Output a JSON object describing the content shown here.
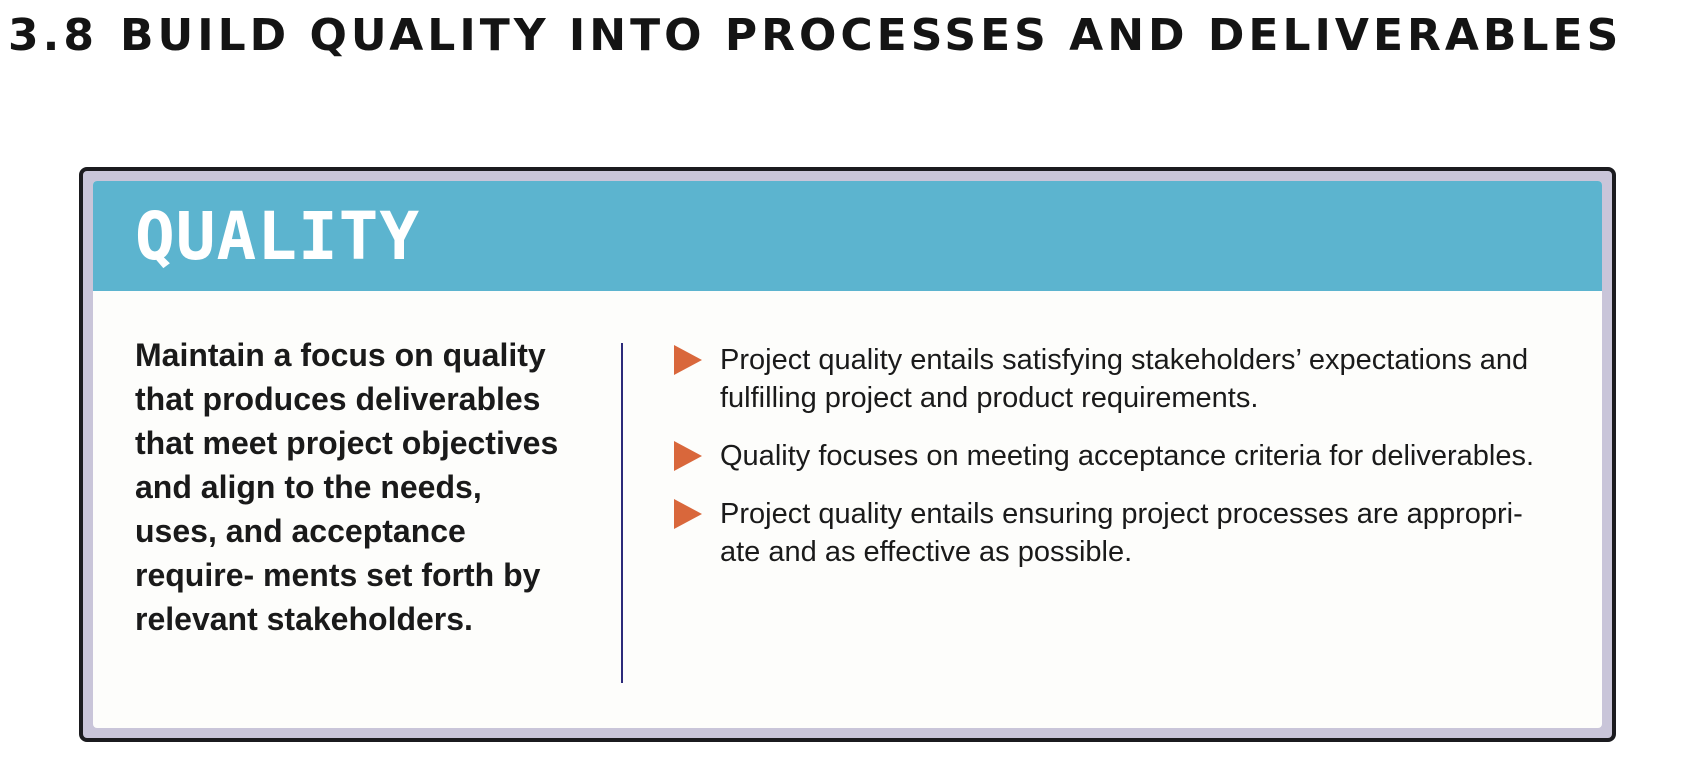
{
  "section": {
    "number": "3.8",
    "title": "BUILD QUALITY INTO PROCESSES AND DELIVERABLES"
  },
  "card": {
    "title": "QUALITY",
    "statement": "Maintain a focus on quality that produces deliverables that meet project objectives and align to the needs, uses, and acceptance require- ments set forth by relevant stakeholders.",
    "bullets": [
      "Project quality entails satisfying stakeholders’ expectations and fulfilling project and product requirements.",
      "Quality focuses on meeting acceptance criteria for deliverables.",
      "Project quality entails ensuring project processes are appropri- ate and as effective as possible."
    ],
    "bullet_icon": "right-triangle-icon"
  },
  "colors": {
    "header": "#5cb4cf",
    "frame": "#c9c5d9",
    "bullet": "#d9673b",
    "divider": "#2c2a7a"
  }
}
